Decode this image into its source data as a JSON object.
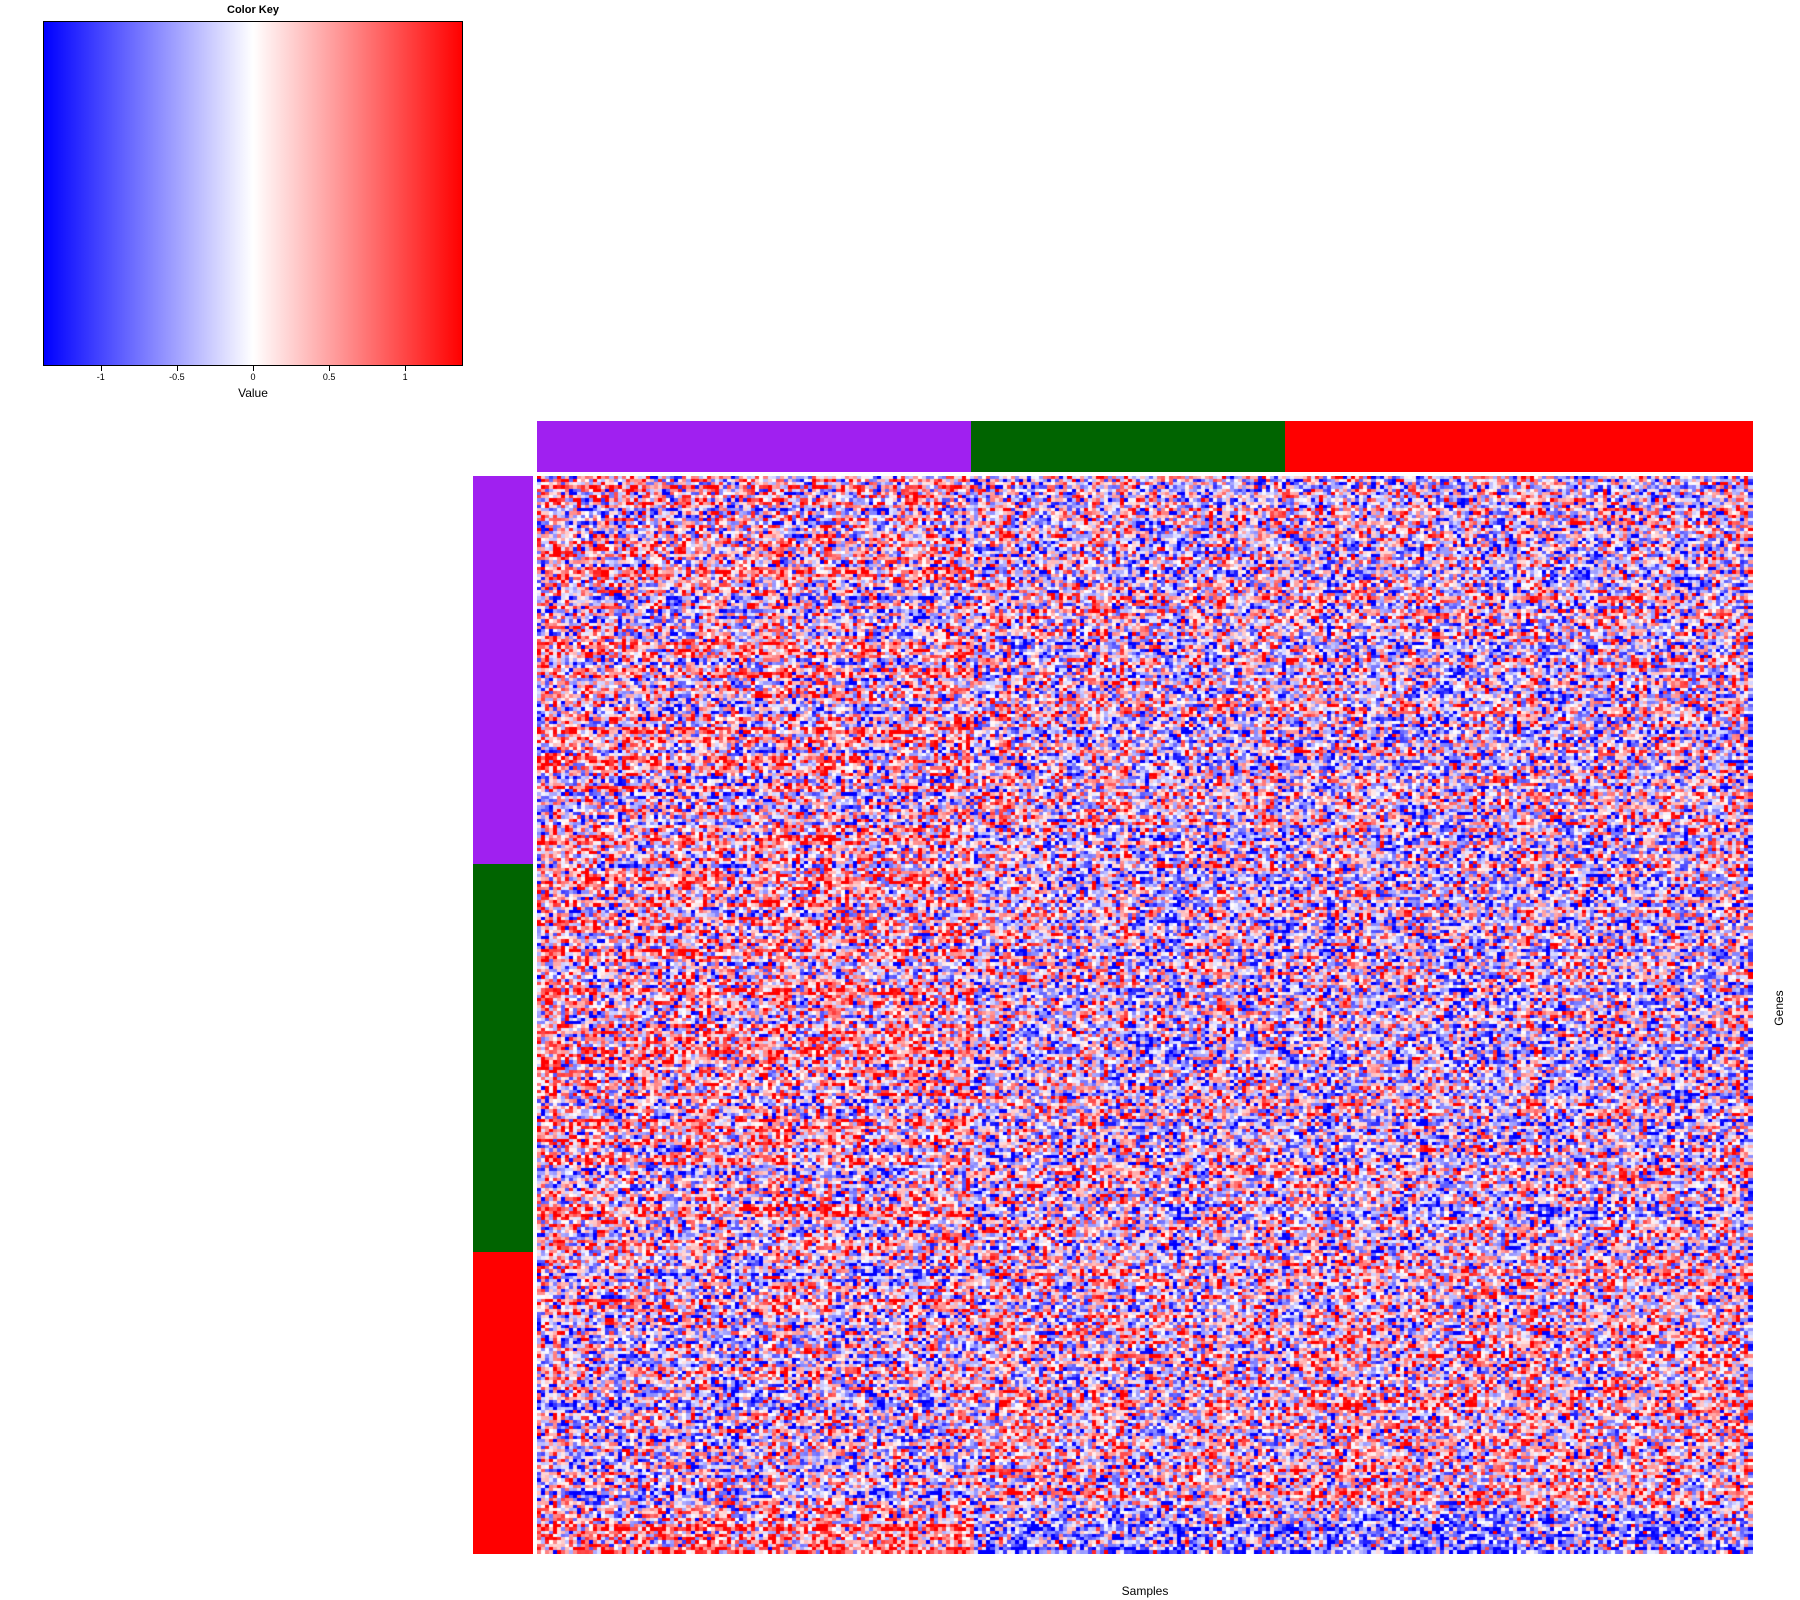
{
  "chart_data": {
    "type": "heatmap",
    "title": "",
    "xlabel": "Samples",
    "ylabel": "Genes",
    "color_key": {
      "title": "Color Key",
      "xlabel": "Value",
      "range": [
        -1.38,
        1.38
      ],
      "ticks": [
        -1,
        -0.5,
        0,
        0.5,
        1
      ],
      "tick_labels": [
        "-1",
        "-0.5",
        "0",
        "0.5",
        "1"
      ],
      "colors": [
        "#0000ff",
        "#ffffff",
        "#ff0000"
      ]
    },
    "column_groups": [
      {
        "color": "#a020f0",
        "fraction": 0.357
      },
      {
        "color": "#006400",
        "fraction": 0.258
      },
      {
        "color": "#ff0000",
        "fraction": 0.385
      }
    ],
    "row_groups": [
      {
        "color": "#a020f0",
        "fraction": 0.36
      },
      {
        "color": "#006400",
        "fraction": 0.36
      },
      {
        "color": "#ff0000",
        "fraction": 0.28
      }
    ],
    "block_means": [
      [
        0.15,
        -0.05,
        -0.1
      ],
      [
        0.15,
        -0.05,
        -0.1
      ],
      [
        -0.1,
        0.1,
        0.15
      ]
    ],
    "bottom_block_means": [
      0.7,
      -0.6,
      -0.7
    ],
    "n_columns": 300,
    "n_rows": 330
  }
}
